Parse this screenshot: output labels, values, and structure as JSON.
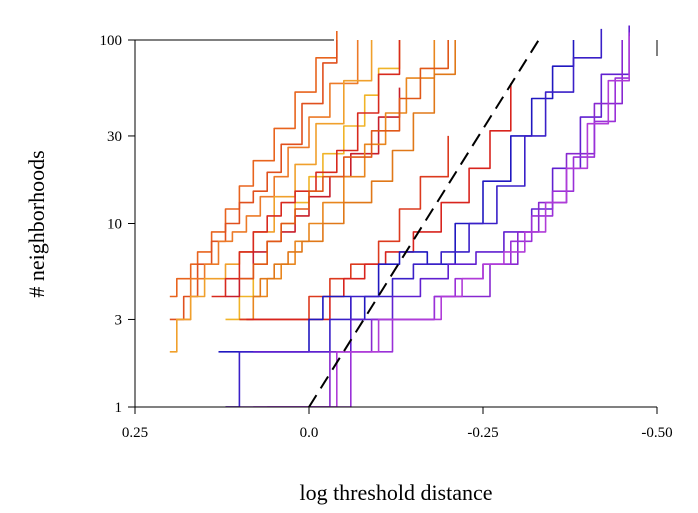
{
  "chart_data": {
    "type": "line",
    "xlabel": "log threshold distance",
    "ylabel": "# neighborhoods",
    "xlim": [
      0.25,
      -0.5
    ],
    "ylim": [
      1,
      100
    ],
    "yscale": "log",
    "xticks": [
      0.25,
      0.0,
      -0.25,
      -0.5
    ],
    "xtick_labels": [
      "0.25",
      "0.0",
      "-0.25",
      "-0.50"
    ],
    "yticks": [
      1,
      3,
      10,
      30,
      100
    ],
    "ytick_labels": [
      "1",
      "3",
      "10",
      "30",
      "100"
    ],
    "grid": false,
    "legend": "none",
    "series": [
      {
        "color": "#e8641e",
        "x": [
          0.2,
          0.19,
          0.17,
          0.16,
          0.14,
          0.12,
          0.1,
          0.08,
          0.05,
          0.02,
          -0.01,
          -0.04
        ],
        "y": [
          4,
          5,
          6,
          7,
          9,
          12,
          16,
          22,
          33,
          52,
          80,
          112
        ]
      },
      {
        "color": "#e0501e",
        "x": [
          0.2,
          0.18,
          0.16,
          0.14,
          0.12,
          0.1,
          0.08,
          0.06,
          0.04,
          0.01,
          -0.02,
          -0.04
        ],
        "y": [
          3,
          4,
          6,
          8,
          10,
          13,
          15,
          19,
          27,
          45,
          75,
          100
        ]
      },
      {
        "color": "#ec7a28",
        "x": [
          0.19,
          0.17,
          0.15,
          0.13,
          0.11,
          0.09,
          0.07,
          0.05,
          0.03,
          0.0,
          -0.03,
          -0.07
        ],
        "y": [
          3,
          5,
          6,
          8,
          9,
          11,
          14,
          18,
          26,
          38,
          58,
          100
        ]
      },
      {
        "color": "#f0a02c",
        "x": [
          0.2,
          0.19,
          0.17,
          0.15,
          0.12,
          0.1,
          0.08,
          0.05,
          0.02,
          -0.01,
          -0.05,
          -0.09
        ],
        "y": [
          2,
          3,
          4,
          5,
          6,
          7,
          9,
          14,
          21,
          35,
          60,
          100
        ]
      },
      {
        "color": "#f0b428",
        "x": [
          0.12,
          0.1,
          0.08,
          0.06,
          0.04,
          0.02,
          0.0,
          -0.02,
          -0.05,
          -0.08,
          -0.1,
          -0.13
        ],
        "y": [
          3,
          4,
          6,
          8,
          10,
          13,
          18,
          24,
          34,
          50,
          70,
          100
        ]
      },
      {
        "color": "#d82a1e",
        "x": [
          0.14,
          0.12,
          0.1,
          0.08,
          0.06,
          0.04,
          0.02,
          -0.01,
          -0.04,
          -0.07,
          -0.1,
          -0.13
        ],
        "y": [
          4,
          5,
          7,
          9,
          11,
          13,
          15,
          19,
          25,
          40,
          65,
          100
        ]
      },
      {
        "color": "#c81e2a",
        "x": [
          0.12,
          0.1,
          0.08,
          0.06,
          0.04,
          0.02,
          0.0,
          -0.03,
          -0.06,
          -0.1,
          -0.13
        ],
        "y": [
          4,
          5,
          7,
          8,
          9,
          11,
          14,
          18,
          24,
          38,
          55
        ]
      },
      {
        "color": "#e8861e",
        "x": [
          0.1,
          0.08,
          0.06,
          0.04,
          0.02,
          0.0,
          -0.02,
          -0.05,
          -0.08,
          -0.11,
          -0.14,
          -0.18
        ],
        "y": [
          3,
          4,
          5,
          6,
          8,
          10,
          13,
          18,
          27,
          40,
          62,
          100
        ]
      },
      {
        "color": "#e07818",
        "x": [
          0.08,
          0.07,
          0.05,
          0.03,
          0.01,
          -0.02,
          -0.05,
          -0.09,
          -0.12,
          -0.15,
          -0.18,
          -0.21
        ],
        "y": [
          4,
          5,
          6,
          7,
          8,
          10,
          13,
          17,
          25,
          40,
          65,
          100
        ]
      },
      {
        "color": "#e05818",
        "x": [
          0.1,
          0.08,
          0.06,
          0.04,
          0.02,
          0.0,
          -0.02,
          -0.05,
          -0.09,
          -0.13,
          -0.16,
          -0.2
        ],
        "y": [
          5,
          6,
          8,
          10,
          12,
          15,
          18,
          23,
          32,
          48,
          70,
          100
        ]
      },
      {
        "color": "#dc3a1e",
        "x": [
          0.1,
          0.09,
          0.06,
          0.04,
          0.02,
          0.0,
          -0.03,
          -0.06,
          -0.1,
          -0.13,
          -0.16,
          -0.2
        ],
        "y": [
          3,
          3,
          3,
          3,
          3,
          4,
          5,
          6,
          8,
          12,
          18,
          30
        ]
      },
      {
        "color": "#d8241e",
        "x": [
          0.09,
          0.08,
          0.06,
          0.04,
          0.02,
          -0.01,
          -0.03,
          -0.05,
          -0.08,
          -0.11,
          -0.15,
          -0.19,
          -0.23,
          -0.26,
          -0.29
        ],
        "y": [
          3,
          3,
          3,
          3,
          3,
          3,
          4,
          5,
          6,
          7,
          9,
          13,
          20,
          32,
          58
        ]
      },
      {
        "color": "#2018c0",
        "x": [
          0.13,
          0.1,
          0.07,
          0.04,
          0.02,
          0.0,
          -0.02,
          -0.03,
          -0.06,
          -0.08,
          -0.1,
          -0.13,
          -0.17,
          -0.21,
          -0.25,
          -0.29,
          -0.32,
          -0.35,
          -0.38
        ],
        "y": [
          2,
          2,
          2,
          2,
          2,
          3,
          4,
          4,
          3,
          4,
          6,
          7,
          6,
          10,
          17,
          30,
          48,
          72,
          100
        ]
      },
      {
        "color": "#3a20c8",
        "x": [
          0.12,
          0.1,
          0.07,
          0.05,
          0.02,
          -0.01,
          -0.03,
          -0.06,
          -0.09,
          -0.12,
          -0.15,
          -0.19,
          -0.23,
          -0.27,
          -0.31,
          -0.34,
          -0.38,
          -0.42
        ],
        "y": [
          1,
          2,
          2,
          2,
          2,
          2,
          3,
          4,
          4,
          5,
          6,
          7,
          10,
          16,
          30,
          52,
          80,
          115
        ]
      },
      {
        "color": "#6020d0",
        "x": [
          0.08,
          0.06,
          0.03,
          0.0,
          -0.03,
          -0.06,
          -0.09,
          -0.12,
          -0.16,
          -0.2,
          -0.24,
          -0.28,
          -0.32,
          -0.35,
          -0.39,
          -0.42,
          -0.46
        ],
        "y": [
          2,
          2,
          2,
          2,
          2,
          3,
          3,
          4,
          5,
          6,
          7,
          9,
          12,
          20,
          38,
          65,
          120
        ]
      },
      {
        "color": "#8828d0",
        "x": [
          0.12,
          0.08,
          0.04,
          0.0,
          -0.03,
          -0.06,
          -0.09,
          -0.12,
          -0.15,
          -0.18,
          -0.22,
          -0.26,
          -0.3,
          -0.33,
          -0.37,
          -0.41,
          -0.45
        ],
        "y": [
          1,
          1,
          1,
          1,
          2,
          2,
          3,
          3,
          3,
          4,
          4,
          6,
          9,
          13,
          24,
          45,
          100
        ]
      },
      {
        "color": "#9a30d8",
        "x": [
          0.06,
          0.03,
          0.0,
          -0.03,
          -0.06,
          -0.09,
          -0.12,
          -0.15,
          -0.18,
          -0.21,
          -0.25,
          -0.29,
          -0.32,
          -0.35,
          -0.38,
          -0.41,
          -0.44,
          -0.46
        ],
        "y": [
          1,
          1,
          1,
          1,
          2,
          2,
          3,
          3,
          4,
          5,
          6,
          8,
          11,
          15,
          23,
          36,
          62,
          110
        ]
      },
      {
        "color": "#b03cd8",
        "x": [
          0.08,
          0.05,
          0.02,
          -0.01,
          -0.04,
          -0.07,
          -0.1,
          -0.13,
          -0.16,
          -0.19,
          -0.22,
          -0.25,
          -0.28,
          -0.31,
          -0.34,
          -0.37,
          -0.4,
          -0.43,
          -0.46
        ],
        "y": [
          1,
          1,
          1,
          1,
          2,
          2,
          3,
          3,
          3,
          4,
          5,
          6,
          7,
          9,
          13,
          20,
          35,
          60,
          105
        ]
      },
      {
        "color": "#000000",
        "dash": true,
        "x": [
          0.0,
          -0.33
        ],
        "y": [
          1,
          100
        ]
      }
    ]
  }
}
